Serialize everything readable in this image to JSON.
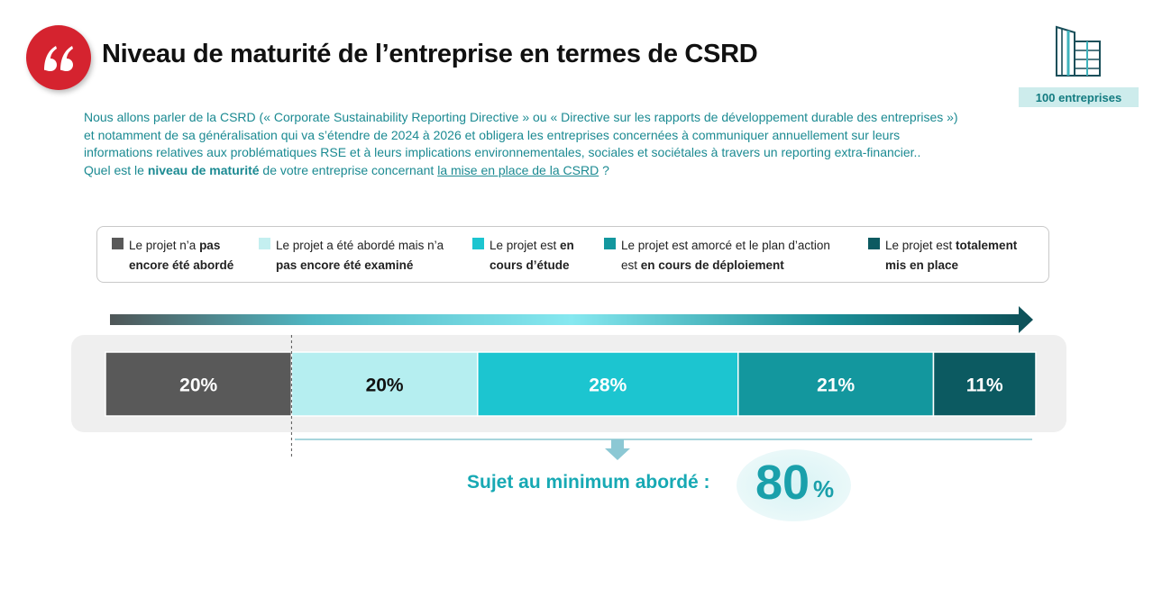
{
  "header": {
    "title": "Niveau de maturité de l’entreprise en termes de CSRD",
    "sample_badge": "100 entreprises",
    "quote_icon": "quote-marks-icon",
    "building_icon": "building-icon"
  },
  "intro": {
    "line1": "Nous allons parler de la CSRD (« Corporate Sustainability Reporting Directive » ou « Directive sur les rapports de développement durable des entreprises »)",
    "line2": "et notamment de sa généralisation qui va s’étendre de 2024 à 2026 et obligera les entreprises concernées à communiquer annuellement sur leurs",
    "line3": "informations relatives aux problématiques RSE et à leurs implications environnementales, sociales et sociétales à travers un reporting extra-financier..",
    "question_pre": "Quel est le ",
    "question_strong": "niveau  de maturité",
    "question_mid": " de votre entreprise concernant ",
    "question_link": "la mise en place de la CSRD",
    "question_post": " ?"
  },
  "legend": [
    {
      "a": "Le projet n’a ",
      "b": "pas",
      "c": "",
      "d": "",
      "e": "encore été abordé",
      "color": "#595959"
    },
    {
      "a": "Le projet a été abordé mais n’a",
      "b": "",
      "c": "",
      "d": "",
      "e": "pas encore été examiné",
      "color": "#c4eff0"
    },
    {
      "a": "Le projet est ",
      "b": "en",
      "c": "",
      "d": "",
      "e": "cours d’étude",
      "color": "#1cc5d0"
    },
    {
      "a": "Le projet est amorcé et le plan d’action",
      "b": "",
      "c": "",
      "d": "est ",
      "e": "en cours de déploiement",
      "color": "#13979e"
    },
    {
      "a": "Le projet est ",
      "b": "totalement",
      "c": "",
      "d": "",
      "e": "mis en place",
      "color": "#0c5a61"
    }
  ],
  "chart_data": {
    "type": "bar",
    "orientation": "horizontal-stacked-100",
    "categories": [
      "Le projet n’a pas encore été abordé",
      "Le projet a été abordé mais n’a pas encore été examiné",
      "Le projet est en cours d’étude",
      "Le projet est amorcé et le plan d’action est en cours de déploiement",
      "Le projet est totalement mis en place"
    ],
    "values": [
      20,
      20,
      28,
      21,
      11
    ],
    "labels": [
      "20%",
      "20%",
      "28%",
      "21%",
      "11%"
    ],
    "colors": [
      "#595959",
      "#b5eef0",
      "#1cc5d0",
      "#13979e",
      "#0c5a61"
    ],
    "label_colors": [
      "#ffffff",
      "#111111",
      "#ffffff",
      "#ffffff",
      "#ffffff"
    ],
    "legend_position": "top"
  },
  "summary": {
    "label": "Sujet au minimum abordé :",
    "value": "80",
    "unit": "%"
  }
}
